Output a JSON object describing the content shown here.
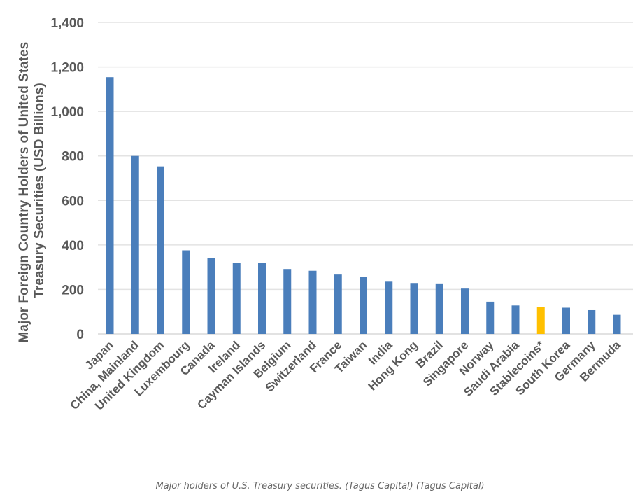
{
  "chart_data": {
    "type": "bar",
    "ylabel": "Major Foreign Country Holders of United States Treasury Securities  (USD Billions)",
    "ylabel_lines": [
      "Major Foreign Country Holders of United States",
      "Treasury Securities  (USD Billions)"
    ],
    "ylim": [
      0,
      1400
    ],
    "yticks": [
      0,
      200,
      400,
      600,
      800,
      1000,
      1200,
      1400
    ],
    "ytick_labels": [
      "0",
      "200",
      "400",
      "600",
      "800",
      "1,000",
      "1,200",
      "1,400"
    ],
    "grid": true,
    "categories": [
      "Japan",
      "China, Mainland",
      "United Kingdom",
      "Luxembourg",
      "Canada",
      "Ireland",
      "Cayman Islands",
      "Belgium",
      "Switzerland",
      "France",
      "Taiwan",
      "India",
      "Hong Kong",
      "Brazil",
      "Singapore",
      "Norway",
      "Saudi Arabia",
      "Stablecoins*",
      "South Korea",
      "Germany",
      "Bermuda"
    ],
    "values": [
      1154,
      800,
      753,
      376,
      341,
      319,
      319,
      292,
      284,
      267,
      256,
      235,
      229,
      227,
      204,
      145,
      128,
      120,
      118,
      107,
      86
    ],
    "colors": {
      "default": "#4a7ebb",
      "highlight": "#ffc000"
    },
    "highlight_category": "Stablecoins*"
  },
  "caption": "Major holders of U.S. Treasury securities. (Tagus Capital) (Tagus Capital)"
}
